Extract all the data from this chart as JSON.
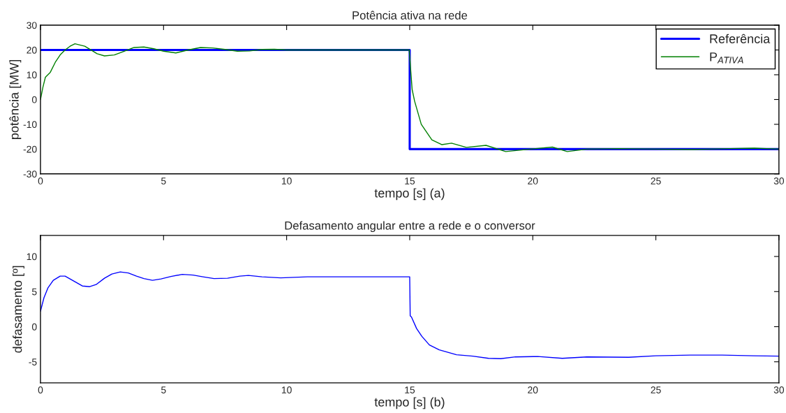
{
  "chart_data": [
    {
      "type": "line",
      "title": "Potência ativa na rede",
      "xlabel": "tempo [s] (a)",
      "ylabel": "potência [MW]",
      "xlim": [
        0,
        30
      ],
      "xticks": [
        0,
        5,
        10,
        15,
        20,
        25,
        30
      ],
      "ylim": [
        -30,
        30
      ],
      "yticks": [
        -30,
        -20,
        -10,
        0,
        10,
        20,
        30
      ],
      "grid": false,
      "legend": "top right",
      "marker": "none",
      "line_style": "solid",
      "series": [
        {
          "name": "Referência",
          "color": "#0000ff",
          "x": [
            0,
            15,
            15,
            30
          ],
          "values": [
            20,
            20,
            -20,
            -20
          ]
        },
        {
          "name": "P$_{ATIVA}$",
          "color": "#008000",
          "x": [
            0,
            0.1,
            0.2,
            0.4,
            0.6,
            0.8,
            1.0,
            1.2,
            1.4,
            1.6,
            1.8,
            2.0,
            2.3,
            2.6,
            3.0,
            3.4,
            3.8,
            4.2,
            4.6,
            5.0,
            5.5,
            6.0,
            6.5,
            7.0,
            7.5,
            8.0,
            8.5,
            9.0,
            9.5,
            10,
            11,
            12,
            13,
            14,
            14.98,
            15.1,
            15.2,
            15.47,
            15.9,
            16.3,
            16.7,
            17.3,
            18.1,
            18.9,
            19.9,
            20.8,
            21.4,
            22.2,
            23.5,
            25,
            26.5,
            28,
            29,
            30
          ],
          "values": [
            0,
            5,
            9,
            11,
            15,
            18,
            20,
            21.5,
            22.5,
            22,
            21.5,
            20.3,
            18.5,
            17.6,
            18,
            19.5,
            21,
            21.2,
            20.5,
            19.5,
            18.8,
            20,
            21,
            20.8,
            20.2,
            19.5,
            19.6,
            20.2,
            20.3,
            20,
            20,
            20,
            20,
            20,
            20,
            4,
            -0.7,
            -10,
            -16.3,
            -18.2,
            -17.6,
            -19.3,
            -18.5,
            -21,
            -20,
            -19.2,
            -21,
            -20,
            -19.8,
            -20,
            -20.2,
            -19.8,
            -19.6,
            -20
          ]
        }
      ]
    },
    {
      "type": "line",
      "title": "Defasamento angular entre a rede e o conversor",
      "xlabel": "tempo [s] (b)",
      "ylabel": "defasamento [º]",
      "xlim": [
        0,
        30
      ],
      "xticks": [
        0,
        5,
        10,
        15,
        20,
        25,
        30
      ],
      "ylim": [
        -8,
        13
      ],
      "yticks": [
        -5,
        0,
        5,
        10
      ],
      "grid": false,
      "legend": false,
      "marker": "none",
      "line_style": "solid",
      "series": [
        {
          "color": "#0000ff",
          "x": [
            0,
            0.14,
            0.3,
            0.52,
            0.8,
            1.0,
            1.4,
            1.7,
            2.0,
            2.26,
            2.6,
            2.9,
            3.24,
            3.57,
            3.9,
            4.2,
            4.55,
            4.9,
            5.3,
            5.76,
            6.2,
            6.6,
            7.05,
            7.6,
            8.1,
            8.45,
            9.0,
            9.76,
            10.85,
            11.9,
            13.6,
            15.0,
            15.02,
            15.07,
            15.28,
            15.49,
            15.8,
            16.2,
            16.6,
            16.9,
            17.56,
            18.2,
            18.7,
            19.3,
            20.2,
            21.2,
            22.2,
            23.9,
            25.0,
            26.4,
            27.7,
            28.97,
            30
          ],
          "values": [
            2.2,
            4.1,
            5.5,
            6.6,
            7.2,
            7.2,
            6.4,
            5.8,
            5.7,
            6.0,
            6.9,
            7.5,
            7.8,
            7.65,
            7.2,
            6.85,
            6.6,
            6.8,
            7.15,
            7.45,
            7.35,
            7.1,
            6.85,
            6.9,
            7.2,
            7.3,
            7.1,
            6.95,
            7.1,
            7.1,
            7.1,
            7.1,
            1.55,
            1.4,
            -0.26,
            -1.36,
            -2.6,
            -3.3,
            -3.7,
            -4.0,
            -4.2,
            -4.5,
            -4.55,
            -4.3,
            -4.25,
            -4.5,
            -4.3,
            -4.35,
            -4.15,
            -4.05,
            -4.05,
            -4.15,
            -4.2
          ]
        }
      ]
    }
  ]
}
